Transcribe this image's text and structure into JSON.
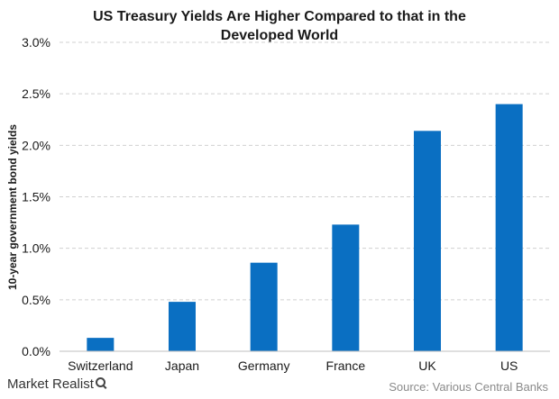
{
  "chart_data": {
    "type": "bar",
    "title_lines": [
      "US Treasury Yields Are Higher Compared to that in the",
      "Developed World"
    ],
    "ylabel": "10-year government bond yields",
    "xlabel": "",
    "categories": [
      "Switzerland",
      "Japan",
      "Germany",
      "France",
      "UK",
      "US"
    ],
    "values": [
      0.13,
      0.48,
      0.86,
      1.23,
      2.14,
      2.4
    ],
    "ylim": [
      0,
      3.0
    ],
    "yticks": [
      0,
      0.5,
      1.0,
      1.5,
      2.0,
      2.5,
      3.0
    ],
    "ytick_labels": [
      "0.0%",
      "0.5%",
      "1.0%",
      "1.5%",
      "2.0%",
      "2.5%",
      "3.0%"
    ],
    "grid": true,
    "bar_color": "#0a6fc2"
  },
  "footer": {
    "logo_text": "Market Realist",
    "source": "Source: Various Central Banks"
  }
}
